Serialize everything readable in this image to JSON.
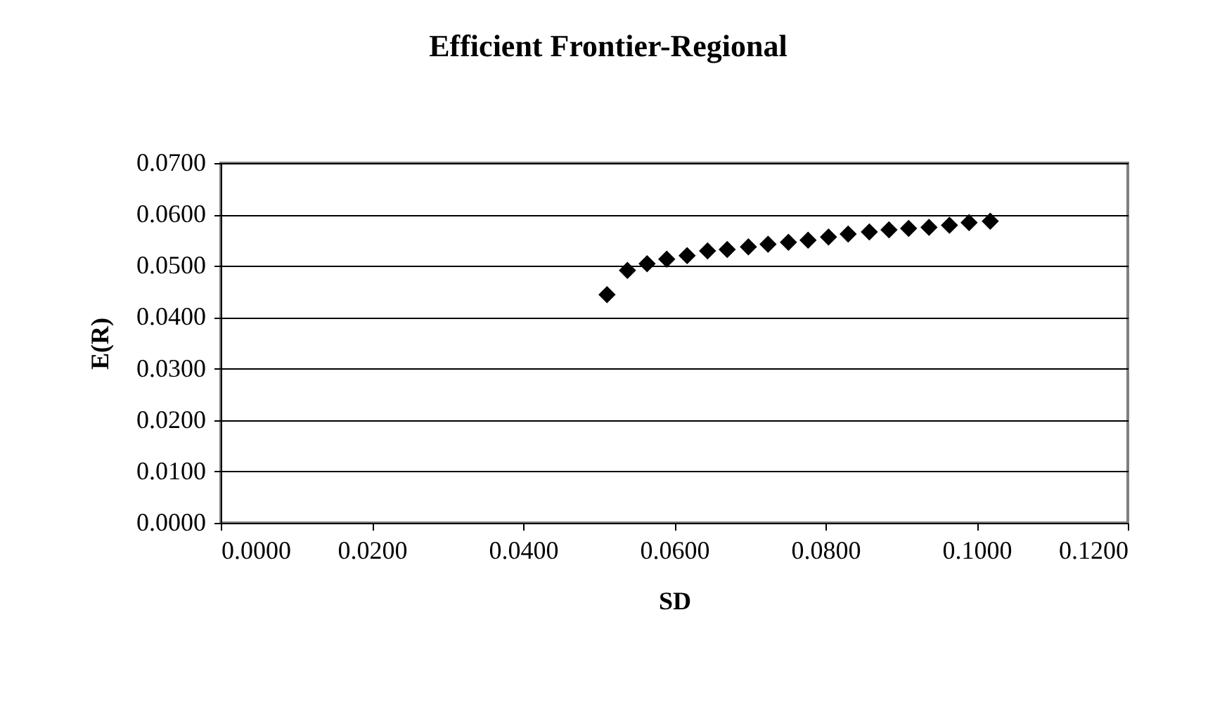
{
  "chart_data": {
    "type": "scatter",
    "title": "Efficient Frontier-Regional",
    "xlabel": "SD",
    "ylabel": "E(R)",
    "x": [
      0.0511,
      0.0538,
      0.0564,
      0.059,
      0.0617,
      0.0644,
      0.067,
      0.0698,
      0.0724,
      0.0751,
      0.0777,
      0.0804,
      0.083,
      0.0858,
      0.0884,
      0.091,
      0.0937,
      0.0964,
      0.099,
      0.1018
    ],
    "series": [
      {
        "color": "#000000",
        "values": [
          0.0444,
          0.0491,
          0.0504,
          0.0513,
          0.052,
          0.0529,
          0.0532,
          0.0537,
          0.0542,
          0.0546,
          0.055,
          0.0556,
          0.0562,
          0.0566,
          0.057,
          0.0573,
          0.0575,
          0.0579,
          0.0584,
          0.0587
        ]
      }
    ],
    "xlim": [
      0,
      0.12
    ],
    "xticks": [
      {
        "value": 0,
        "label": "0.0000"
      },
      {
        "value": 0.02,
        "label": "0.0200"
      },
      {
        "value": 0.04,
        "label": "0.0400"
      },
      {
        "value": 0.06,
        "label": "0.0600"
      },
      {
        "value": 0.08,
        "label": "0.0800"
      },
      {
        "value": 0.1,
        "label": "0.1000"
      },
      {
        "value": 0.12,
        "label": "0.1200"
      }
    ],
    "ylim": [
      0,
      0.07
    ],
    "yticks": [
      {
        "value": 0,
        "label": "0.0000"
      },
      {
        "value": 0.01,
        "label": "0.0100"
      },
      {
        "value": 0.02,
        "label": "0.0200"
      },
      {
        "value": 0.03,
        "label": "0.0300"
      },
      {
        "value": 0.04,
        "label": "0.0400"
      },
      {
        "value": 0.05,
        "label": "0.0500"
      },
      {
        "value": 0.06,
        "label": "0.0600"
      },
      {
        "value": 0.07,
        "label": "0.0700"
      }
    ],
    "grid": "y",
    "marker": "diamond",
    "legend": false
  }
}
